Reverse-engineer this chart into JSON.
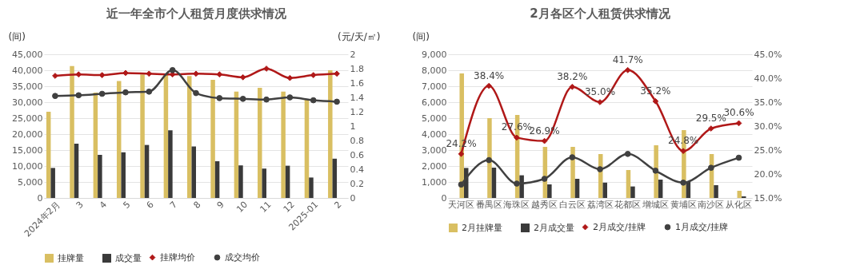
{
  "chart_data": [
    {
      "type": "bar",
      "title": "近一年全市个人租赁月度供求情况",
      "ylabel": "(间)",
      "y2label": "(元/天/㎡)",
      "categories": [
        "2024年2月",
        "3",
        "4",
        "5",
        "6",
        "7",
        "8",
        "9",
        "10",
        "11",
        "12",
        "2025-01",
        "2"
      ],
      "ylim": [
        0,
        45000
      ],
      "yticks": [
        0,
        {
          "value": 5000,
          "label": "5,000"
        },
        {
          "value": 10000,
          "label": "10,000"
        },
        {
          "value": 15000,
          "label": "15,000"
        },
        {
          "value": 20000,
          "label": "20,000"
        },
        {
          "value": 25000,
          "label": "25,000"
        },
        {
          "value": 30000,
          "label": "30,000"
        },
        {
          "value": 35000,
          "label": "35,000"
        },
        {
          "value": 40000,
          "label": "40,000"
        },
        {
          "value": 45000,
          "label": "45,000"
        }
      ],
      "y2lim": [
        0,
        2
      ],
      "y2ticks": [
        0,
        0.2,
        0.4,
        0.6,
        0.8,
        1,
        1.2,
        1.4,
        1.6,
        1.8,
        2
      ],
      "grid": "y",
      "legend": "bottom",
      "series": [
        {
          "name": "挂牌量",
          "color": "#d9bf62",
          "values": [
            27000,
            41300,
            33000,
            36600,
            38700,
            38600,
            38200,
            37000,
            33300,
            34500,
            33300,
            31000,
            40000
          ]
        },
        {
          "name": "成交量",
          "color": "#3a3a3a",
          "values": [
            9400,
            17000,
            13500,
            14300,
            16600,
            21200,
            16100,
            11500,
            10200,
            9200,
            10100,
            6400,
            12300
          ]
        },
        {
          "name": "挂牌均价",
          "type": "line",
          "axis": "y2",
          "marker": "diamond",
          "color": "#b01818",
          "values": [
            1.7,
            1.72,
            1.71,
            1.74,
            1.73,
            1.72,
            1.73,
            1.72,
            1.68,
            1.8,
            1.67,
            1.71,
            1.73
          ]
        },
        {
          "name": "成交均价",
          "type": "line",
          "axis": "y2",
          "marker": "circle",
          "color": "#404040",
          "values": [
            1.42,
            1.43,
            1.45,
            1.47,
            1.48,
            1.78,
            1.46,
            1.39,
            1.38,
            1.37,
            1.4,
            1.36,
            1.34
          ]
        }
      ]
    },
    {
      "type": "bar",
      "title": "2月各区个人租赁供求情况",
      "ylabel": "(间)",
      "categories": [
        "天河区",
        "番禺区",
        "海珠区",
        "越秀区",
        "白云区",
        "荔湾区",
        "花都区",
        "增城区",
        "黄埔区",
        "南沙区",
        "从化区"
      ],
      "ylim": [
        0,
        9000
      ],
      "yticks": [
        0,
        {
          "value": 1000,
          "label": "1,000"
        },
        {
          "value": 2000,
          "label": "2,000"
        },
        {
          "value": 3000,
          "label": "3,000"
        },
        {
          "value": 4000,
          "label": "4,000"
        },
        {
          "value": 5000,
          "label": "5,000"
        },
        {
          "value": 6000,
          "label": "6,000"
        },
        {
          "value": 7000,
          "label": "7,000"
        },
        {
          "value": 8000,
          "label": "8,000"
        },
        {
          "value": 9000,
          "label": "9,000"
        }
      ],
      "y2lim": [
        15,
        45
      ],
      "y2ticks": [
        {
          "value": 15,
          "label": "15.0%"
        },
        {
          "value": 20,
          "label": "20.0%"
        },
        {
          "value": 25,
          "label": "25.0%"
        },
        {
          "value": 30,
          "label": "30.0%"
        },
        {
          "value": 35,
          "label": "35.0%"
        },
        {
          "value": 40,
          "label": "40.0%"
        },
        {
          "value": 45,
          "label": "45.0%"
        }
      ],
      "grid": "y",
      "legend": "bottom",
      "series": [
        {
          "name": "2月挂牌量",
          "color": "#d9bf62",
          "values": [
            7800,
            5000,
            5200,
            3200,
            3200,
            2750,
            1750,
            3300,
            4250,
            2750,
            450
          ]
        },
        {
          "name": "2月成交量",
          "color": "#3a3a3a",
          "values": [
            1880,
            1900,
            1420,
            850,
            1200,
            960,
            720,
            1150,
            1050,
            800,
            100
          ]
        },
        {
          "name": "2月成交/挂牌",
          "type": "line",
          "axis": "y2",
          "marker": "diamond",
          "color": "#b01818",
          "values": [
            24.2,
            38.4,
            27.6,
            26.9,
            38.2,
            35.0,
            41.7,
            35.2,
            24.8,
            29.5,
            30.6
          ],
          "value_labels": [
            "24.2%",
            "38.4%",
            "27.6%",
            "26.9%",
            "38.2%",
            "35.0%",
            "41.7%",
            "35.2%",
            "24.8%",
            "29.5%",
            "30.6%"
          ]
        },
        {
          "name": "1月成交/挂牌",
          "type": "line",
          "axis": "y2",
          "marker": "circle",
          "color": "#404040",
          "values": [
            17.8,
            22.9,
            18.0,
            19.0,
            23.5,
            21.0,
            24.2,
            20.7,
            18.2,
            21.3,
            23.4
          ]
        }
      ]
    }
  ]
}
